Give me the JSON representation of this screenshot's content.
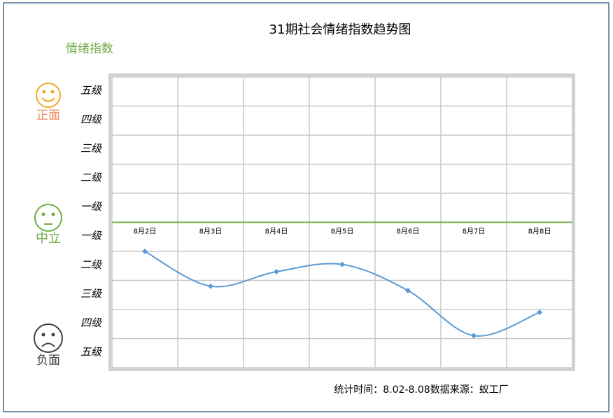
{
  "chart_data": {
    "type": "line",
    "title": "31期社会情绪指数趋势图",
    "y_label": "情绪指数",
    "categories": [
      "8月2日",
      "8月3日",
      "8月4日",
      "8月5日",
      "8月6日",
      "8月7日",
      "8月8日"
    ],
    "series": [
      {
        "name": "情绪指数",
        "color": "#5b9bd5",
        "values": [
          -1,
          -2.2,
          -1.7,
          -1.45,
          -2.35,
          -3.9,
          -3.1
        ]
      }
    ],
    "ylim": [
      -5,
      5
    ],
    "yticks": [
      {
        "value": 4.5,
        "label": "五级"
      },
      {
        "value": 3.5,
        "label": "四级"
      },
      {
        "value": 2.5,
        "label": "三级"
      },
      {
        "value": 1.5,
        "label": "二级"
      },
      {
        "value": 0.5,
        "label": "一级"
      },
      {
        "value": -0.5,
        "label": "一级"
      },
      {
        "value": -1.5,
        "label": "二级"
      },
      {
        "value": -2.5,
        "label": "三级"
      },
      {
        "value": -3.5,
        "label": "四级"
      },
      {
        "value": -4.5,
        "label": "五级"
      }
    ],
    "grid": true,
    "sentiment_labels": [
      "正面",
      "中立",
      "负面"
    ],
    "footnote": "统计时间：8.02-8.08数据来源：蚁工厂"
  }
}
